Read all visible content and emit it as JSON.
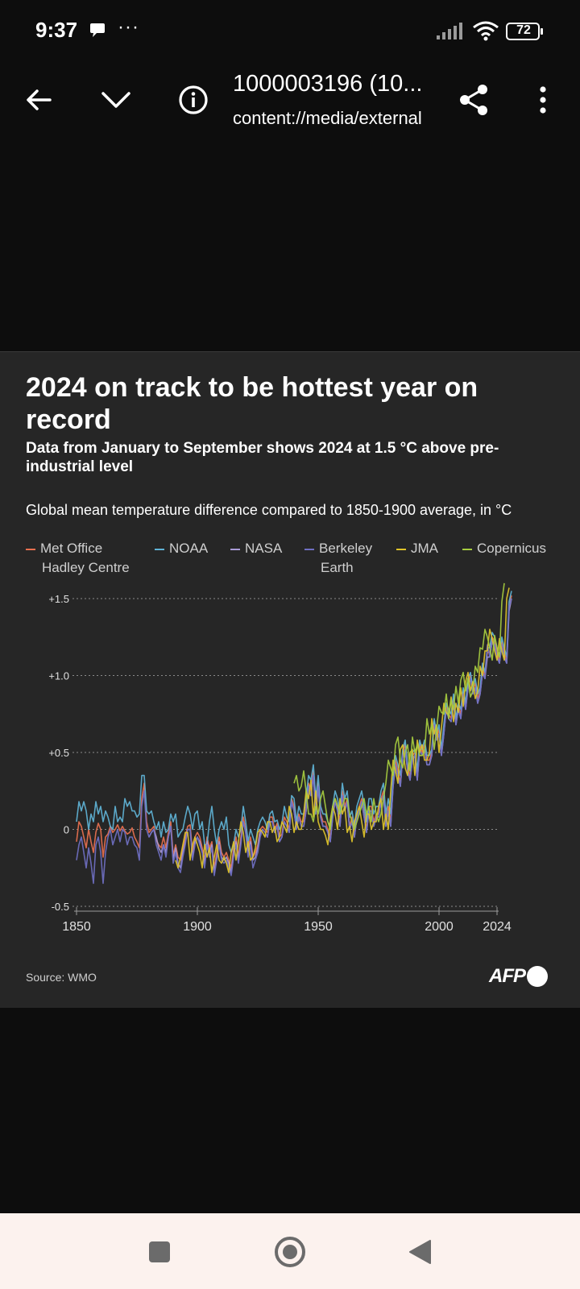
{
  "status_bar": {
    "time": "9:37",
    "dots": "···",
    "battery": "72"
  },
  "app_bar": {
    "title": "1000003196 (10...",
    "subtitle": "content://media/external",
    "icons": [
      "back-arrow-icon",
      "chevron-down-icon",
      "info-icon",
      "share-icon",
      "more-vert-icon"
    ]
  },
  "infographic": {
    "headline": "2024 on track to be hottest year on record",
    "subheadline": "Data from January to September shows 2024 at 1.5 °C above pre-industrial level",
    "description": "Global mean temperature difference compared to 1850-1900 average, in °C",
    "source": "Source: WMO",
    "logo_text": "AFP"
  },
  "chart_data": {
    "type": "line",
    "title": "Global mean temperature difference compared to 1850-1900 average, in °C",
    "xlabel": "",
    "ylabel": "°C",
    "xlim": [
      1850,
      2024
    ],
    "ylim": [
      -0.5,
      1.5
    ],
    "x_ticks": [
      1850,
      1900,
      1950,
      2000,
      2024
    ],
    "x_tick_labels": [
      "1850",
      "1900",
      "1950",
      "2000",
      "2024"
    ],
    "y_ticks": [
      -0.5,
      0,
      0.5,
      1.0,
      1.5
    ],
    "y_tick_labels": [
      "-0.5",
      "0",
      "+0.5",
      "+1.0",
      "+1.5"
    ],
    "grid": true,
    "legend": [
      {
        "name": "Met Office Hadley Centre",
        "line1": "Met Office",
        "line2": "Hadley Centre",
        "color": "#e8704f"
      },
      {
        "name": "NOAA",
        "line1": "NOAA",
        "line2": "",
        "color": "#5fb3d6"
      },
      {
        "name": "NASA",
        "line1": "NASA",
        "line2": "",
        "color": "#a99ad6"
      },
      {
        "name": "Berkeley Earth",
        "line1": "Berkeley",
        "line2": "Earth",
        "color": "#6f6fc2"
      },
      {
        "name": "JMA",
        "line1": "JMA",
        "line2": "",
        "color": "#e0c42a"
      },
      {
        "name": "Copernicus",
        "line1": "Copernicus",
        "line2": "",
        "color": "#a6cc3f"
      }
    ],
    "series": [
      {
        "name": "Met Office Hadley Centre",
        "start": 1850,
        "values": [
          -0.08,
          0.05,
          0.02,
          -0.05,
          -0.12,
          0.0,
          -0.08,
          -0.15,
          -0.02,
          0.04,
          0.0,
          -0.18,
          -0.05,
          -0.03,
          0.02,
          -0.02,
          0.0,
          0.03,
          -0.01,
          0.02,
          -0.01,
          -0.03,
          -0.02,
          0.01,
          -0.05,
          -0.08,
          -0.12,
          0.2,
          0.3,
          0.05,
          -0.02,
          0.0,
          0.02,
          -0.07,
          -0.1,
          -0.12,
          -0.05,
          -0.12,
          -0.02,
          0.05,
          -0.17,
          -0.1,
          -0.18,
          -0.2,
          -0.12,
          -0.05,
          0.02,
          0.03,
          -0.15,
          -0.05,
          -0.02,
          -0.05,
          -0.12,
          -0.2,
          -0.05,
          -0.12,
          -0.08,
          -0.25,
          -0.15,
          -0.05,
          -0.15,
          -0.18,
          -0.15,
          -0.2,
          -0.25,
          -0.12,
          -0.05,
          -0.18,
          -0.05,
          0.08,
          0.0,
          -0.12,
          -0.05,
          -0.18,
          -0.15,
          -0.1,
          0.0,
          0.02,
          0.0,
          -0.02,
          0.08,
          0.08,
          0.0,
          0.04,
          -0.05,
          -0.03,
          0.08,
          0.05,
          0.0,
          0.2,
          0.15,
          0.02,
          0.1,
          0.05,
          0.05,
          0.15,
          0.3,
          0.25,
          0.38,
          0.12,
          0.3,
          0.1,
          0.05,
          0.05,
          0.0,
          -0.05,
          0.1,
          0.2,
          0.15,
          0.05,
          0.25,
          0.15,
          0.2,
          0.02,
          0.08,
          -0.04,
          0.1,
          0.15,
          0.2,
          0.1,
          0.0,
          0.15,
          0.15,
          0.05,
          0.1,
          0.1,
          0.2,
          0.25,
          0.05,
          0.15,
          0.05,
          0.3,
          0.45,
          0.38,
          0.3,
          0.5,
          0.55,
          0.4,
          0.35,
          0.48,
          0.5,
          0.35,
          0.55,
          0.5,
          0.55,
          0.45,
          0.45,
          0.5,
          0.7,
          0.6,
          0.65,
          0.5,
          0.65,
          0.8,
          0.75,
          0.72,
          0.85,
          0.7,
          0.8,
          0.75,
          0.9,
          0.8,
          0.95,
          1.0,
          0.9,
          0.95,
          0.85,
          0.9,
          1.05,
          1.0,
          1.15,
          1.15,
          1.25,
          1.22,
          1.15,
          1.1,
          1.22,
          1.15,
          1.1,
          1.45,
          1.52
        ]
      },
      {
        "name": "NOAA",
        "start": 1850,
        "values": [
          0.05,
          0.18,
          0.12,
          0.18,
          0.12,
          0.0,
          0.1,
          0.05,
          0.18,
          0.1,
          0.15,
          0.05,
          0.12,
          0.08,
          0.02,
          0.0,
          0.15,
          0.05,
          0.08,
          0.05,
          0.2,
          0.15,
          0.18,
          0.12,
          0.12,
          0.08,
          0.1,
          0.35,
          0.35,
          0.12,
          0.1,
          0.12,
          0.05,
          0.0,
          0.05,
          -0.05,
          0.05,
          -0.02,
          0.0,
          0.1,
          0.05,
          0.1,
          -0.05,
          -0.02,
          0.0,
          0.08,
          0.15,
          0.1,
          0.0,
          0.1,
          0.12,
          0.0,
          0.05,
          -0.1,
          -0.1,
          0.05,
          0.15,
          0.0,
          -0.1,
          0.0,
          0.05,
          0.0,
          0.08,
          -0.1,
          -0.15,
          -0.1,
          0.0,
          -0.05,
          0.0,
          0.15,
          0.05,
          -0.08,
          0.0,
          -0.05,
          -0.1,
          0.0,
          0.05,
          0.08,
          0.05,
          0.0,
          0.1,
          0.12,
          0.05,
          0.06,
          0.0,
          0.04,
          0.15,
          0.08,
          0.05,
          0.22,
          0.2,
          0.05,
          0.15,
          0.1,
          0.1,
          0.2,
          0.35,
          0.32,
          0.42,
          0.2,
          0.35,
          0.15,
          0.1,
          0.1,
          0.05,
          0.02,
          0.15,
          0.25,
          0.2,
          0.1,
          0.3,
          0.2,
          0.25,
          0.08,
          0.12,
          0.02,
          0.15,
          0.2,
          0.25,
          0.15,
          0.05,
          0.2,
          0.2,
          0.1,
          0.15,
          0.15,
          0.25,
          0.3,
          0.1,
          0.2,
          0.1,
          0.35,
          0.48,
          0.42,
          0.35,
          0.52,
          0.58,
          0.42,
          0.38,
          0.5,
          0.52,
          0.38,
          0.58,
          0.52,
          0.58,
          0.48,
          0.48,
          0.52,
          0.72,
          0.62,
          0.68,
          0.52,
          0.68,
          0.82,
          0.78,
          0.75,
          0.88,
          0.72,
          0.82,
          0.78,
          0.92,
          0.82,
          0.98,
          1.02,
          0.92,
          0.98,
          0.88,
          0.92,
          1.08,
          1.02,
          1.18,
          1.18,
          1.28,
          1.25,
          1.18,
          1.12,
          1.25,
          1.18,
          1.12,
          1.48,
          1.55
        ]
      },
      {
        "name": "NASA",
        "start": 1880,
        "values": [
          -0.05,
          -0.02,
          0.0,
          -0.05,
          -0.12,
          -0.15,
          -0.1,
          -0.15,
          -0.05,
          0.02,
          -0.2,
          -0.12,
          -0.22,
          -0.25,
          -0.15,
          -0.08,
          0.0,
          0.0,
          -0.18,
          -0.08,
          -0.05,
          -0.08,
          -0.15,
          -0.22,
          -0.08,
          -0.15,
          -0.1,
          -0.28,
          -0.18,
          -0.08,
          -0.18,
          -0.2,
          -0.18,
          -0.22,
          -0.28,
          -0.15,
          -0.08,
          -0.2,
          -0.08,
          0.05,
          -0.02,
          -0.15,
          -0.08,
          -0.2,
          -0.18,
          -0.12,
          -0.02,
          0.0,
          -0.02,
          -0.05,
          0.05,
          0.05,
          -0.02,
          0.02,
          -0.08,
          -0.05,
          0.05,
          0.02,
          -0.02,
          0.18,
          0.12,
          0.0,
          0.08,
          0.02,
          0.02,
          0.12,
          0.28,
          0.22,
          0.35,
          0.1,
          0.28,
          0.08,
          0.02,
          0.02,
          -0.02,
          -0.08,
          0.08,
          0.18,
          0.12,
          0.02,
          0.22,
          0.12,
          0.18,
          0.0,
          0.05,
          -0.05,
          0.08,
          0.12,
          0.18,
          0.08,
          -0.02,
          0.12,
          0.12,
          0.02,
          0.08,
          0.08,
          0.18,
          0.22,
          0.02,
          0.12,
          0.02,
          0.28,
          0.42,
          0.35,
          0.28,
          0.48,
          0.52,
          0.38,
          0.32,
          0.45,
          0.48,
          0.32,
          0.52,
          0.48,
          0.52,
          0.42,
          0.42,
          0.48,
          0.68,
          0.58,
          0.62,
          0.48,
          0.62,
          0.78,
          0.72,
          0.7,
          0.82,
          0.68,
          0.78,
          0.72,
          0.88,
          0.78,
          0.92,
          0.98,
          0.88,
          0.92,
          0.82,
          0.88,
          1.02,
          0.98,
          1.12,
          1.12,
          1.22,
          1.2,
          1.12,
          1.08,
          1.2,
          1.12,
          1.08,
          1.42,
          1.5
        ]
      },
      {
        "name": "Berkeley Earth",
        "start": 1850,
        "values": [
          -0.2,
          -0.1,
          -0.05,
          -0.15,
          -0.25,
          -0.12,
          -0.22,
          -0.35,
          -0.1,
          -0.05,
          -0.15,
          -0.35,
          -0.15,
          -0.05,
          0.0,
          -0.1,
          -0.05,
          0.0,
          -0.08,
          0.0,
          -0.02,
          -0.1,
          -0.05,
          -0.05,
          -0.1,
          -0.12,
          -0.2,
          0.15,
          0.25,
          0.0,
          -0.05,
          -0.02,
          0.0,
          -0.1,
          -0.15,
          -0.2,
          -0.1,
          -0.18,
          -0.05,
          0.02,
          -0.22,
          -0.15,
          -0.25,
          -0.28,
          -0.18,
          -0.1,
          0.0,
          0.0,
          -0.2,
          -0.1,
          -0.05,
          -0.1,
          -0.15,
          -0.25,
          -0.1,
          -0.18,
          -0.12,
          -0.3,
          -0.2,
          -0.1,
          -0.2,
          -0.22,
          -0.2,
          -0.25,
          -0.3,
          -0.18,
          -0.1,
          -0.22,
          -0.1,
          0.05,
          -0.02,
          -0.18,
          -0.1,
          -0.25,
          -0.2,
          -0.15,
          -0.05,
          0.0,
          -0.02,
          -0.05,
          0.05,
          0.05,
          -0.02,
          0.02,
          -0.08,
          -0.05,
          0.05,
          0.02,
          -0.02,
          0.18,
          0.12,
          0.0,
          0.08,
          0.02,
          0.02,
          0.12,
          0.28,
          0.22,
          0.35,
          0.1,
          0.28,
          0.08,
          0.02,
          0.02,
          -0.02,
          -0.08,
          0.08,
          0.18,
          0.12,
          0.02,
          0.22,
          0.12,
          0.18,
          0.0,
          0.05,
          -0.05,
          0.08,
          0.12,
          0.18,
          0.08,
          -0.02,
          0.12,
          0.12,
          0.02,
          0.08,
          0.08,
          0.18,
          0.22,
          0.02,
          0.12,
          0.02,
          0.28,
          0.42,
          0.35,
          0.28,
          0.48,
          0.52,
          0.38,
          0.32,
          0.45,
          0.48,
          0.32,
          0.52,
          0.48,
          0.52,
          0.42,
          0.42,
          0.48,
          0.68,
          0.58,
          0.62,
          0.48,
          0.62,
          0.78,
          0.72,
          0.7,
          0.82,
          0.68,
          0.78,
          0.72,
          0.88,
          0.78,
          0.92,
          0.98,
          0.88,
          0.92,
          0.82,
          0.88,
          1.02,
          0.98,
          1.2,
          1.12,
          1.22,
          1.2,
          1.12,
          1.08,
          1.2,
          1.12,
          1.08,
          1.45,
          1.5
        ]
      },
      {
        "name": "JMA",
        "start": 1891,
        "values": [
          -0.2,
          -0.25,
          -0.18,
          -0.1,
          -0.02,
          -0.02,
          -0.2,
          -0.1,
          -0.05,
          -0.1,
          -0.15,
          -0.25,
          -0.1,
          -0.18,
          -0.12,
          -0.28,
          -0.18,
          -0.1,
          -0.2,
          -0.22,
          -0.18,
          -0.22,
          -0.28,
          -0.15,
          -0.08,
          -0.2,
          -0.08,
          0.05,
          -0.02,
          -0.15,
          -0.08,
          -0.2,
          -0.18,
          -0.12,
          -0.02,
          0.0,
          -0.02,
          -0.05,
          0.05,
          0.05,
          -0.02,
          0.02,
          -0.08,
          -0.05,
          0.05,
          0.02,
          -0.02,
          0.15,
          0.1,
          -0.02,
          0.05,
          0.0,
          0.0,
          0.1,
          0.25,
          0.2,
          0.32,
          0.08,
          0.25,
          0.05,
          0.0,
          0.0,
          -0.04,
          -0.1,
          0.06,
          0.15,
          0.1,
          0.0,
          0.2,
          0.1,
          0.15,
          -0.02,
          0.02,
          -0.08,
          0.05,
          0.1,
          0.15,
          0.05,
          -0.05,
          0.1,
          0.1,
          0.0,
          0.05,
          0.05,
          0.15,
          0.2,
          0.0,
          0.1,
          0.0,
          0.25,
          0.45,
          0.38,
          0.3,
          0.52,
          0.55,
          0.4,
          0.35,
          0.5,
          0.52,
          0.35,
          0.58,
          0.5,
          0.55,
          0.45,
          0.45,
          0.5,
          0.72,
          0.62,
          0.68,
          0.5,
          0.66,
          0.82,
          0.76,
          0.74,
          0.86,
          0.7,
          0.82,
          0.76,
          0.92,
          0.8,
          0.96,
          1.02,
          0.9,
          0.96,
          0.85,
          0.9,
          1.06,
          1.0,
          1.16,
          1.16,
          1.3,
          1.24,
          1.16,
          1.1,
          1.24,
          1.16,
          1.1,
          1.5,
          1.57
        ]
      },
      {
        "name": "Copernicus",
        "start": 1940,
        "values": [
          0.3,
          0.35,
          0.25,
          0.28,
          0.38,
          0.25,
          0.1,
          0.1,
          0.05,
          0.15,
          0.1,
          0.2,
          0.25,
          0.15,
          0.05,
          0.0,
          0.15,
          0.2,
          0.15,
          0.1,
          0.15,
          0.2,
          0.2,
          0.1,
          0.05,
          0.0,
          0.05,
          0.1,
          0.15,
          0.2,
          0.1,
          0.15,
          0.05,
          0.2,
          0.1,
          0.05,
          0.1,
          0.2,
          0.3,
          0.45,
          0.4,
          0.35,
          0.55,
          0.6,
          0.45,
          0.4,
          0.5,
          0.55,
          0.38,
          0.6,
          0.5,
          0.55,
          0.48,
          0.48,
          0.5,
          0.72,
          0.62,
          0.68,
          0.52,
          0.65,
          0.8,
          0.76,
          0.75,
          0.88,
          0.72,
          0.84,
          0.78,
          0.93,
          0.82,
          0.97,
          1.02,
          0.9,
          0.98,
          0.86,
          0.9,
          1.06,
          1.02,
          1.18,
          1.17,
          1.3,
          1.25,
          1.18,
          1.1,
          1.26,
          1.18,
          1.12,
          1.48,
          1.6
        ]
      }
    ]
  },
  "nav_bar": {
    "icons": [
      "recents-square-icon",
      "home-circle-icon",
      "back-triangle-icon"
    ]
  }
}
